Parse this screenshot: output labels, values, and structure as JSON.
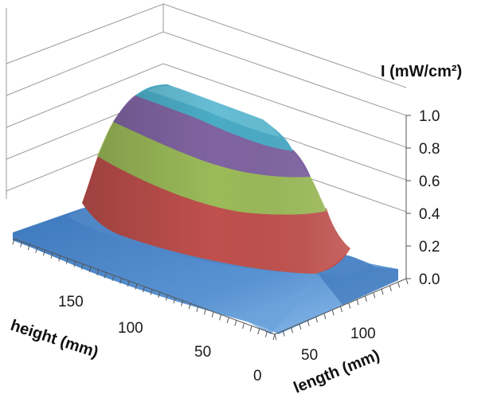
{
  "chart_data": {
    "type": "surface-3d",
    "z_axis": {
      "label": "I (mW/cm²)",
      "ticks": [
        "0.0",
        "0.2",
        "0.4",
        "0.6",
        "0.8",
        "1.0"
      ],
      "range": [
        0,
        1.0
      ]
    },
    "height_axis": {
      "label": "height (mm)",
      "ticks": [
        "50",
        "100",
        "150"
      ]
    },
    "length_axis": {
      "label": "length (mm)",
      "ticks": [
        "0",
        "50",
        "100"
      ]
    },
    "bands": [
      {
        "range": [
          0.0,
          0.2
        ],
        "color": "#4f86c6"
      },
      {
        "range": [
          0.2,
          0.4
        ],
        "color": "#c0504d"
      },
      {
        "range": [
          0.4,
          0.6
        ],
        "color": "#9bbb59"
      },
      {
        "range": [
          0.6,
          0.8
        ],
        "color": "#8064a2"
      },
      {
        "range": [
          0.8,
          1.0
        ],
        "color": "#4bacc6"
      }
    ],
    "peak_value": 1.0,
    "shape": "plateau",
    "grid": true
  }
}
